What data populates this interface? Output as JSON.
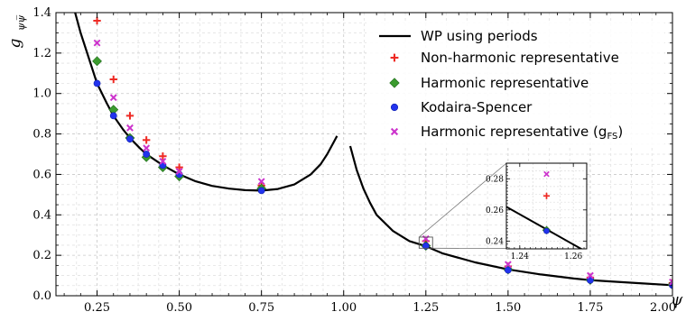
{
  "chart_data": {
    "type": "scatter",
    "xlabel": "ψ",
    "ylabel": "g_{ψ̅ψ}",
    "ylabel_main": "g",
    "ylabel_sub": "ψψ̅",
    "xlim": [
      0.125,
      2.0
    ],
    "ylim": [
      0.0,
      1.4
    ],
    "x_ticks": [
      "0.25",
      "0.50",
      "0.75",
      "1.00",
      "1.25",
      "1.50",
      "1.75",
      "2.00"
    ],
    "x_tick_values": [
      0.25,
      0.5,
      0.75,
      1.0,
      1.25,
      1.5,
      1.75,
      2.0
    ],
    "y_ticks": [
      "0.0",
      "0.2",
      "0.4",
      "0.6",
      "0.8",
      "1.0",
      "1.2",
      "1.4"
    ],
    "y_tick_values": [
      0.0,
      0.2,
      0.4,
      0.6,
      0.8,
      1.0,
      1.2,
      1.4
    ],
    "grid": true,
    "legend_position": "top-right",
    "series": [
      {
        "name": "WP using periods",
        "kind": "line",
        "color": "#000000",
        "segments": [
          {
            "x": [
              0.18,
              0.2,
              0.22,
              0.25,
              0.28,
              0.3,
              0.33,
              0.35,
              0.38,
              0.4,
              0.45,
              0.5,
              0.55,
              0.6,
              0.65,
              0.7,
              0.75,
              0.8,
              0.85,
              0.9,
              0.93,
              0.95,
              0.97,
              0.98
            ],
            "y": [
              1.42,
              1.3,
              1.2,
              1.05,
              0.95,
              0.89,
              0.82,
              0.78,
              0.73,
              0.7,
              0.645,
              0.6,
              0.566,
              0.543,
              0.53,
              0.522,
              0.52,
              0.528,
              0.55,
              0.6,
              0.65,
              0.7,
              0.76,
              0.79
            ]
          },
          {
            "x": [
              1.02,
              1.04,
              1.06,
              1.08,
              1.1,
              1.15,
              1.2,
              1.25,
              1.3,
              1.4,
              1.5,
              1.6,
              1.7,
              1.75,
              1.8,
              1.9,
              2.0
            ],
            "y": [
              0.74,
              0.62,
              0.53,
              0.46,
              0.4,
              0.32,
              0.27,
              0.245,
              0.21,
              0.165,
              0.13,
              0.105,
              0.085,
              0.077,
              0.072,
              0.062,
              0.052
            ]
          }
        ]
      },
      {
        "name": "Non-harmonic representative",
        "kind": "plus",
        "color": "#ee2a24",
        "x": [
          0.25,
          0.3,
          0.35,
          0.4,
          0.45,
          0.5,
          0.75,
          1.25,
          1.5,
          1.75,
          2.0
        ],
        "y": [
          1.36,
          1.07,
          0.89,
          0.77,
          0.69,
          0.635,
          0.545,
          0.27,
          0.145,
          0.09,
          0.063
        ]
      },
      {
        "name": "Harmonic representative",
        "kind": "diamond",
        "color": "#3b9b2e",
        "x": [
          0.25,
          0.3,
          0.35,
          0.4,
          0.45,
          0.5,
          0.75,
          1.25,
          1.5,
          1.75,
          2.0
        ],
        "y": [
          1.16,
          0.92,
          0.78,
          0.685,
          0.635,
          0.59,
          0.53,
          0.247,
          0.13,
          0.078,
          0.055
        ]
      },
      {
        "name": "Kodaira-Spencer",
        "kind": "circle",
        "color": "#2233ee",
        "x": [
          0.25,
          0.3,
          0.35,
          0.4,
          0.45,
          0.5,
          0.75,
          1.25,
          1.5,
          1.75,
          2.0
        ],
        "y": [
          1.05,
          0.89,
          0.775,
          0.7,
          0.645,
          0.6,
          0.52,
          0.246,
          0.127,
          0.077,
          0.052
        ]
      },
      {
        "name": "Harmonic representative (g",
        "name_sub": "FS",
        "name_end": ")",
        "kind": "cross",
        "color": "#cc33cc",
        "x": [
          0.25,
          0.3,
          0.35,
          0.4,
          0.45,
          0.5,
          0.75,
          1.25,
          1.5,
          1.75,
          2.0
        ],
        "y": [
          1.25,
          0.98,
          0.83,
          0.73,
          0.665,
          0.615,
          0.565,
          0.282,
          0.155,
          0.1,
          0.068
        ]
      }
    ],
    "inset": {
      "xlim": [
        1.235,
        1.265
      ],
      "ylim": [
        0.235,
        0.29
      ],
      "x_ticks": [
        "1.24",
        "1.26"
      ],
      "x_tick_values": [
        1.24,
        1.26
      ],
      "y_ticks": [
        "0.24",
        "0.26",
        "0.28"
      ],
      "y_tick_values": [
        0.24,
        0.26,
        0.28
      ],
      "line": {
        "x": [
          1.235,
          1.25,
          1.265
        ],
        "y": [
          0.262,
          0.2475,
          0.233
        ]
      },
      "points": [
        {
          "series": 1,
          "x": 1.25,
          "y": 0.269
        },
        {
          "series": 2,
          "x": 1.25,
          "y": 0.247
        },
        {
          "series": 3,
          "x": 1.25,
          "y": 0.2465
        },
        {
          "series": 4,
          "x": 1.25,
          "y": 0.283
        }
      ]
    }
  }
}
